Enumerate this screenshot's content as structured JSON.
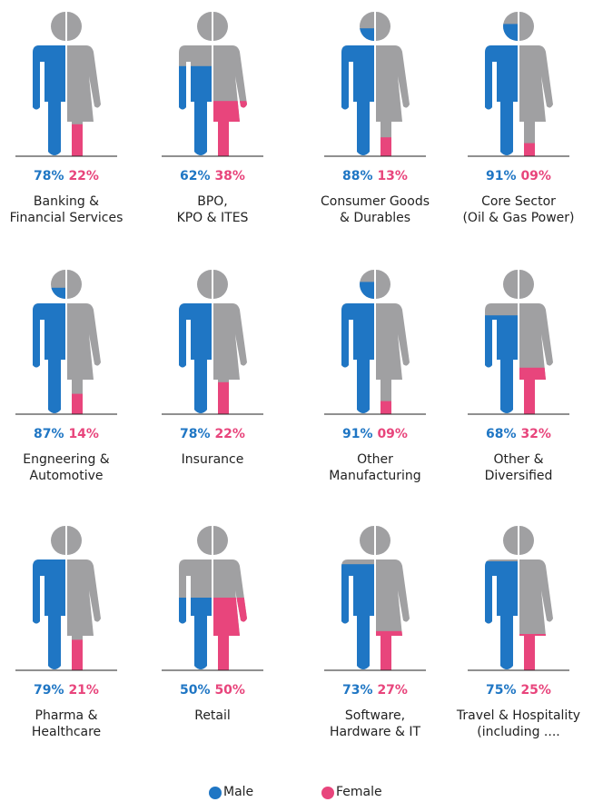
{
  "chart_data": {
    "type": "pictogram",
    "categories": [
      "Banking &\nFinancial Services",
      "BPO,\nKPO & ITES",
      "Consumer Goods\n& Durables",
      "Core Sector\n(Oil & Gas Power)",
      "Engneering &\nAutomotive",
      "Insurance",
      "Other\nManufacturing",
      "Other &\nDiversified",
      "Pharma &\nHealthcare",
      "Retail",
      "Software,\nHardware & IT",
      "Travel & Hospitality\n(including ...."
    ],
    "series": [
      {
        "name": "Male",
        "color": "#1f76c4",
        "values": [
          78,
          62,
          88,
          91,
          87,
          78,
          91,
          68,
          79,
          50,
          73,
          75
        ],
        "value_labels": [
          "78%",
          "62%",
          "88%",
          "91%",
          "87%",
          "78%",
          "91%",
          "68%",
          "79%",
          "50%",
          "73%",
          "75%"
        ]
      },
      {
        "name": "Female",
        "color": "#e8457c",
        "values": [
          22,
          38,
          13,
          9,
          14,
          22,
          9,
          32,
          21,
          50,
          27,
          25
        ],
        "value_labels": [
          "22%",
          "38%",
          "13%",
          "09%",
          "14%",
          "22%",
          "09%",
          "32%",
          "21%",
          "50%",
          "27%",
          "25%"
        ]
      }
    ],
    "ylim": [
      0,
      100
    ]
  }
}
